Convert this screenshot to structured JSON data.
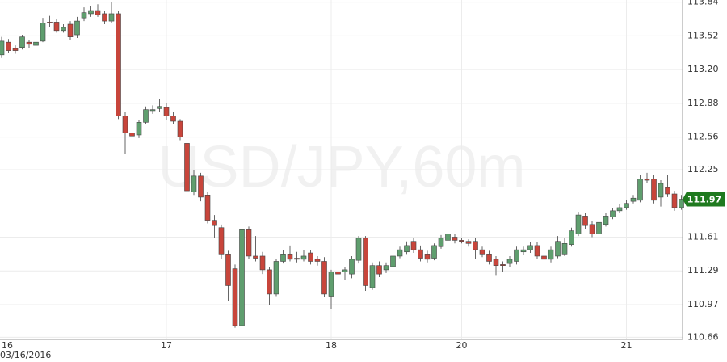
{
  "chart_data": {
    "type": "candlestick",
    "watermark": "USD/JPY,60m",
    "date_label": "03/16/2016",
    "last_price": 111.97,
    "up_color": "#5f9e6e",
    "down_color": "#c8453b",
    "price_tag_color": "#1f7a1f",
    "ylim": [
      110.64,
      113.86
    ],
    "yticks": [
      113.84,
      113.52,
      {
        "value": 113.2,
        "label": "113.20"
      },
      112.88,
      112.56,
      112.25,
      111.61,
      111.29,
      110.97,
      110.66
    ],
    "grid": true,
    "categories": [
      "16",
      null,
      null,
      null,
      null,
      null,
      null,
      null,
      null,
      null,
      null,
      null,
      null,
      null,
      null,
      null,
      null,
      null,
      null,
      null,
      null,
      null,
      null,
      null,
      "17",
      null,
      null,
      null,
      null,
      null,
      null,
      null,
      null,
      null,
      null,
      null,
      null,
      null,
      null,
      null,
      null,
      null,
      null,
      null,
      null,
      null,
      null,
      null,
      "18",
      null,
      null,
      null,
      null,
      null,
      null,
      null,
      null,
      null,
      null,
      null,
      null,
      null,
      null,
      null,
      null,
      null,
      null,
      "20",
      null,
      null,
      null,
      null,
      null,
      null,
      null,
      null,
      null,
      null,
      null,
      null,
      null,
      null,
      null,
      null,
      null,
      null,
      null,
      null,
      null,
      null,
      null,
      "21",
      null,
      null,
      null,
      null,
      null,
      null,
      null,
      null
    ],
    "open": [
      113.34,
      113.46,
      113.4,
      113.41,
      113.46,
      113.43,
      113.47,
      113.65,
      113.65,
      113.57,
      113.63,
      113.53,
      113.69,
      113.73,
      113.76,
      113.73,
      113.66,
      113.73,
      112.76,
      112.6,
      112.58,
      112.7,
      112.81,
      112.83,
      112.84,
      112.76,
      112.71,
      112.5,
      112.04,
      112.19,
      112.01,
      111.77,
      111.7,
      111.45,
      111.31,
      110.77,
      111.68,
      111.43,
      111.43,
      111.3,
      111.07,
      111.38,
      111.45,
      111.41,
      111.4,
      111.46,
      111.4,
      111.38,
      111.05,
      111.28,
      111.28,
      111.26,
      111.39,
      111.6,
      111.13,
      111.34,
      111.3,
      111.33,
      111.43,
      111.47,
      111.57,
      111.49,
      111.45,
      111.41,
      111.52,
      111.58,
      111.61,
      111.58,
      111.57,
      111.57,
      111.49,
      111.45,
      111.4,
      111.35,
      111.36,
      111.38,
      111.47,
      111.49,
      111.53,
      111.43,
      111.4,
      111.43,
      111.45,
      111.54,
      111.64,
      111.81,
      111.73,
      111.64,
      111.73,
      111.8,
      111.86,
      111.89,
      111.95,
      111.96,
      112.16,
      112.16,
      111.99,
      112.08,
      112.02,
      111.89
    ],
    "high": [
      113.51,
      113.49,
      113.43,
      113.53,
      113.48,
      113.5,
      113.69,
      113.71,
      113.68,
      113.63,
      113.66,
      113.7,
      113.79,
      113.8,
      113.82,
      113.76,
      113.84,
      113.76,
      112.8,
      112.65,
      112.72,
      112.85,
      112.86,
      112.92,
      112.88,
      112.8,
      112.73,
      112.55,
      112.25,
      112.22,
      112.04,
      111.82,
      111.73,
      111.48,
      111.35,
      111.82,
      111.71,
      111.62,
      111.47,
      111.33,
      111.4,
      111.49,
      111.53,
      111.47,
      111.49,
      111.49,
      111.43,
      111.42,
      111.3,
      111.31,
      111.33,
      111.43,
      111.62,
      111.62,
      111.37,
      111.38,
      111.37,
      111.46,
      111.52,
      111.57,
      111.6,
      111.53,
      111.48,
      111.55,
      111.63,
      111.71,
      111.64,
      111.6,
      111.59,
      111.6,
      111.52,
      111.48,
      111.43,
      111.38,
      111.43,
      111.52,
      111.52,
      111.56,
      111.56,
      111.46,
      111.52,
      111.62,
      111.6,
      111.7,
      111.85,
      111.84,
      111.76,
      111.78,
      111.84,
      111.89,
      111.92,
      111.96,
      112.01,
      112.2,
      112.22,
      112.2,
      112.15,
      112.2,
      112.05,
      112.01
    ],
    "low": [
      113.31,
      113.36,
      113.35,
      113.39,
      113.4,
      113.41,
      113.46,
      113.6,
      113.55,
      113.55,
      113.48,
      113.5,
      113.66,
      113.7,
      113.7,
      113.63,
      113.64,
      112.73,
      112.4,
      112.52,
      112.55,
      112.68,
      112.78,
      112.8,
      112.72,
      112.68,
      112.53,
      111.98,
      112.01,
      111.95,
      111.74,
      111.6,
      111.4,
      111.0,
      110.75,
      110.7,
      111.4,
      111.38,
      111.26,
      110.97,
      111.05,
      111.36,
      111.38,
      111.37,
      111.38,
      111.35,
      111.34,
      111.04,
      110.93,
      111.24,
      111.2,
      111.22,
      111.36,
      111.1,
      111.11,
      111.23,
      111.27,
      111.31,
      111.41,
      111.45,
      111.46,
      111.38,
      111.37,
      111.39,
      111.5,
      111.56,
      111.55,
      111.55,
      111.52,
      111.4,
      111.42,
      111.35,
      111.25,
      111.28,
      111.33,
      111.35,
      111.44,
      111.46,
      111.4,
      111.37,
      111.37,
      111.41,
      111.43,
      111.52,
      111.62,
      111.69,
      111.61,
      111.62,
      111.71,
      111.78,
      111.84,
      111.87,
      111.93,
      111.94,
      112.12,
      111.93,
      111.9,
      111.99,
      111.86,
      111.87
    ],
    "close": [
      113.47,
      113.38,
      113.38,
      113.51,
      113.44,
      113.46,
      113.64,
      113.64,
      113.57,
      113.6,
      113.51,
      113.66,
      113.74,
      113.76,
      113.72,
      113.66,
      113.73,
      112.76,
      112.6,
      112.57,
      112.7,
      112.82,
      112.82,
      112.85,
      112.76,
      112.71,
      112.56,
      112.05,
      112.19,
      111.99,
      111.77,
      111.72,
      111.45,
      111.15,
      110.77,
      111.68,
      111.43,
      111.41,
      111.3,
      111.07,
      111.38,
      111.45,
      111.4,
      111.4,
      111.43,
      111.38,
      111.38,
      111.07,
      111.28,
      111.26,
      111.3,
      111.4,
      111.6,
      111.15,
      111.34,
      111.26,
      111.34,
      111.43,
      111.49,
      111.53,
      111.49,
      111.41,
      111.4,
      111.53,
      111.6,
      111.64,
      111.58,
      111.57,
      111.55,
      111.49,
      111.45,
      111.38,
      111.34,
      111.34,
      111.4,
      111.49,
      111.49,
      111.53,
      111.43,
      111.4,
      111.49,
      111.57,
      111.55,
      111.67,
      111.82,
      111.72,
      111.64,
      111.75,
      111.81,
      111.86,
      111.89,
      111.93,
      111.98,
      112.16,
      112.15,
      111.96,
      112.12,
      112.02,
      111.89,
      111.97
    ]
  }
}
